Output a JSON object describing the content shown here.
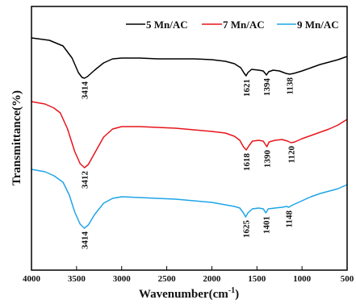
{
  "chart_data": {
    "type": "line",
    "xlabel": "Wavenumber(cm",
    "xlabel_sup": "-1",
    "xlabel_close": ")",
    "ylabel": "Transmittance(%)",
    "xlim": [
      4000,
      500
    ],
    "x_ticks": [
      4000,
      3500,
      3000,
      2500,
      2000,
      1500,
      1000,
      500
    ],
    "y_ticks": "none",
    "legend_position": "top",
    "series": [
      {
        "name": "5 Mn/AC",
        "color": "#000000",
        "points": [
          [
            4000,
            47
          ],
          [
            3800,
            50
          ],
          [
            3650,
            57
          ],
          [
            3550,
            72
          ],
          [
            3480,
            90
          ],
          [
            3440,
            96
          ],
          [
            3414,
            97
          ],
          [
            3380,
            95
          ],
          [
            3300,
            87
          ],
          [
            3200,
            78
          ],
          [
            3100,
            73
          ],
          [
            3000,
            72
          ],
          [
            2800,
            72
          ],
          [
            2600,
            73
          ],
          [
            2400,
            73
          ],
          [
            2200,
            73
          ],
          [
            2000,
            74
          ],
          [
            1850,
            76
          ],
          [
            1750,
            79
          ],
          [
            1680,
            84
          ],
          [
            1640,
            91
          ],
          [
            1621,
            94
          ],
          [
            1600,
            90
          ],
          [
            1560,
            86
          ],
          [
            1480,
            87
          ],
          [
            1430,
            88
          ],
          [
            1394,
            93
          ],
          [
            1370,
            89
          ],
          [
            1320,
            87
          ],
          [
            1250,
            88
          ],
          [
            1180,
            91
          ],
          [
            1138,
            92
          ],
          [
            1090,
            91
          ],
          [
            1000,
            88
          ],
          [
            900,
            84
          ],
          [
            800,
            80
          ],
          [
            700,
            77
          ],
          [
            600,
            74
          ],
          [
            500,
            70
          ]
        ],
        "peaks": [
          {
            "x": 3414,
            "label": "3414"
          },
          {
            "x": 1621,
            "label": "1621"
          },
          {
            "x": 1394,
            "label": "1394"
          },
          {
            "x": 1138,
            "label": "1138"
          }
        ]
      },
      {
        "name": "7 Mn/AC",
        "color": "#e8141c",
        "points": [
          [
            4000,
            126
          ],
          [
            3850,
            129
          ],
          [
            3750,
            134
          ],
          [
            3680,
            140
          ],
          [
            3600,
            160
          ],
          [
            3520,
            188
          ],
          [
            3460,
            203
          ],
          [
            3412,
            208
          ],
          [
            3370,
            204
          ],
          [
            3300,
            190
          ],
          [
            3200,
            170
          ],
          [
            3100,
            160
          ],
          [
            3000,
            157
          ],
          [
            2800,
            157
          ],
          [
            2600,
            158
          ],
          [
            2400,
            159
          ],
          [
            2200,
            161
          ],
          [
            2000,
            163
          ],
          [
            1850,
            165
          ],
          [
            1750,
            169
          ],
          [
            1690,
            174
          ],
          [
            1650,
            182
          ],
          [
            1618,
            186
          ],
          [
            1590,
            181
          ],
          [
            1550,
            175
          ],
          [
            1480,
            174
          ],
          [
            1430,
            175
          ],
          [
            1390,
            182
          ],
          [
            1365,
            176
          ],
          [
            1300,
            174
          ],
          [
            1220,
            173
          ],
          [
            1160,
            175
          ],
          [
            1120,
            177
          ],
          [
            1080,
            176
          ],
          [
            1000,
            172
          ],
          [
            900,
            168
          ],
          [
            800,
            164
          ],
          [
            700,
            160
          ],
          [
            600,
            155
          ],
          [
            500,
            148
          ]
        ],
        "peaks": [
          {
            "x": 3412,
            "label": "3412"
          },
          {
            "x": 1618,
            "label": "1618"
          },
          {
            "x": 1390,
            "label": "1390"
          },
          {
            "x": 1120,
            "label": "1120"
          }
        ]
      },
      {
        "name": "9 Mn/AC",
        "color": "#1ea5e6",
        "points": [
          [
            4000,
            210
          ],
          [
            3850,
            213
          ],
          [
            3750,
            218
          ],
          [
            3650,
            226
          ],
          [
            3580,
            242
          ],
          [
            3520,
            263
          ],
          [
            3460,
            278
          ],
          [
            3414,
            283
          ],
          [
            3370,
            279
          ],
          [
            3300,
            266
          ],
          [
            3200,
            252
          ],
          [
            3100,
            246
          ],
          [
            3000,
            244
          ],
          [
            2800,
            245
          ],
          [
            2600,
            246
          ],
          [
            2400,
            247
          ],
          [
            2200,
            249
          ],
          [
            2000,
            251
          ],
          [
            1850,
            254
          ],
          [
            1750,
            256
          ],
          [
            1690,
            258
          ],
          [
            1650,
            264
          ],
          [
            1625,
            269
          ],
          [
            1600,
            264
          ],
          [
            1550,
            259
          ],
          [
            1480,
            258
          ],
          [
            1430,
            259
          ],
          [
            1401,
            264
          ],
          [
            1375,
            259
          ],
          [
            1300,
            258
          ],
          [
            1220,
            257
          ],
          [
            1170,
            256
          ],
          [
            1148,
            257
          ],
          [
            1100,
            254
          ],
          [
            1000,
            249
          ],
          [
            900,
            244
          ],
          [
            800,
            240
          ],
          [
            700,
            237
          ],
          [
            600,
            234
          ],
          [
            500,
            229
          ]
        ],
        "peaks": [
          {
            "x": 3414,
            "label": "3414"
          },
          {
            "x": 1625,
            "label": "1625"
          },
          {
            "x": 1401,
            "label": "1401"
          },
          {
            "x": 1148,
            "label": "1148"
          }
        ]
      }
    ]
  }
}
